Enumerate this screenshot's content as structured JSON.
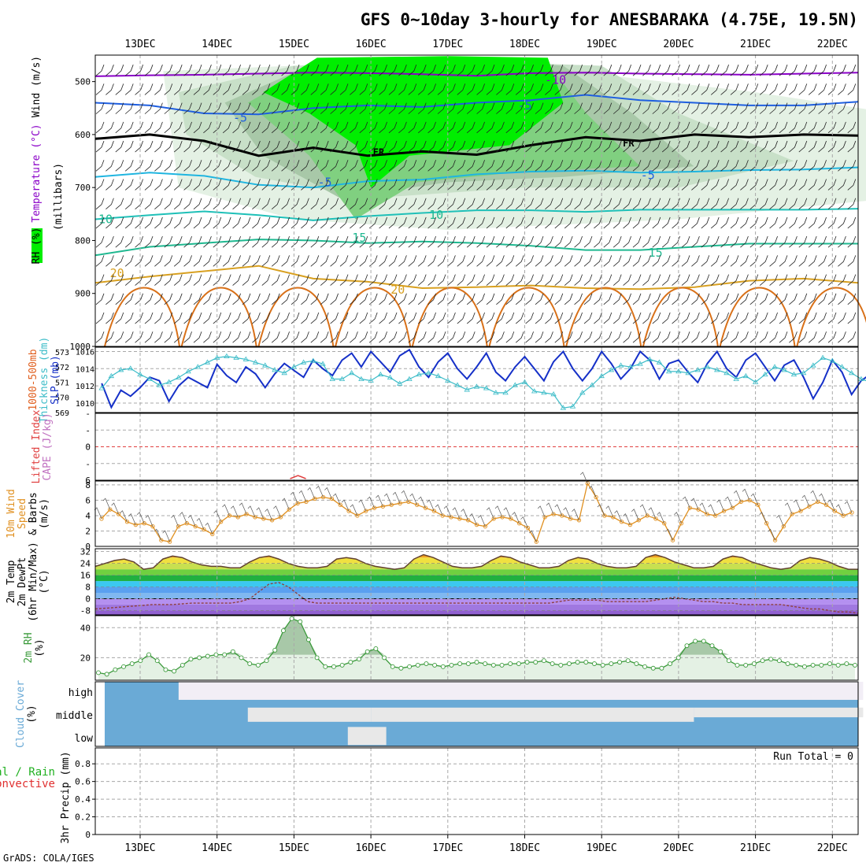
{
  "title": "GFS 0~10day 3-hourly for ANESBARAKA (4.75E, 19.5N)",
  "footer": "GrADS: COLA/IGES",
  "run_total_label": "Run Total = 0",
  "colors": {
    "rh_green": "#00ee00",
    "temperature_purple": "#8a00c8",
    "temperature_blue": "#1f5fe0",
    "freezing": "#000000",
    "temp_cyan": "#1fb5e0",
    "temp_teal": "#1fc0b8",
    "temp_green": "#1fb890",
    "temp_gold": "#d8a020",
    "temp_orange": "#d87018",
    "slp": "#1530c8",
    "thickness": "#3cbcc8",
    "wind": "#e09020",
    "rh2m": "#3a9a3a",
    "cloud": "#6aaad6"
  },
  "chart_data": [
    {
      "type": "heatmap",
      "panel": "upper-air",
      "ylabels": [
        "Wind (m/s)",
        "Temperature (°C)",
        "RH (%)",
        "(millibars)"
      ],
      "x": [
        "13DEC",
        "14DEC",
        "15DEC",
        "16DEC",
        "17DEC",
        "18DEC",
        "19DEC",
        "20DEC",
        "21DEC",
        "22DEC"
      ],
      "ylim": [
        1000,
        450
      ],
      "yticks": [
        500,
        600,
        700,
        800,
        900,
        1000
      ],
      "isotherm_labels": [
        {
          "value": "-10",
          "x": "17DEC+1.4",
          "y": 497
        },
        {
          "value": "-5",
          "x": "17DEC+1.0",
          "y": 545
        },
        {
          "value": "-5",
          "x": "13DEC+1.3",
          "y": 568
        },
        {
          "value": "FR",
          "x": "15DEC+1.1",
          "y": 632
        },
        {
          "value": "FR",
          "x": "19DEC+0.35",
          "y": 615
        },
        {
          "value": "-5",
          "x": "15DEC+0.4",
          "y": 690
        },
        {
          "value": "-5",
          "x": "19DEC+0.6",
          "y": 677
        },
        {
          "value": "10",
          "x": "13DEC-0.45",
          "y": 760
        },
        {
          "value": "10",
          "x": "16DEC+0.85",
          "y": 752
        },
        {
          "value": "15",
          "x": "15DEC+0.85",
          "y": 795
        },
        {
          "value": "15",
          "x": "20DEC-0.3",
          "y": 823
        },
        {
          "value": "20",
          "x": "13DEC-0.3",
          "y": 862
        },
        {
          "value": "20",
          "x": "16DEC+0.35",
          "y": 893
        }
      ],
      "isotherms": [
        {
          "name": "-10",
          "level": [
            490,
            488,
            487,
            485,
            483,
            484,
            486,
            489,
            484,
            483,
            485,
            486,
            487,
            485,
            483
          ]
        },
        {
          "name": "-5",
          "level": [
            540,
            545,
            560,
            562,
            550,
            545,
            548,
            540,
            535,
            525,
            535,
            540,
            545,
            545,
            538
          ]
        },
        {
          "name": "FR",
          "level": [
            608,
            600,
            612,
            640,
            625,
            640,
            632,
            638,
            620,
            605,
            612,
            600,
            605,
            600,
            602
          ]
        },
        {
          "name": "-5",
          "level": [
            680,
            672,
            678,
            695,
            700,
            688,
            685,
            675,
            670,
            668,
            672,
            670,
            667,
            666,
            662
          ]
        },
        {
          "name": "10",
          "level": [
            760,
            752,
            745,
            752,
            762,
            754,
            748,
            743,
            743,
            746,
            742,
            742,
            742,
            742,
            740
          ]
        },
        {
          "name": "15",
          "level": [
            828,
            812,
            805,
            798,
            800,
            805,
            802,
            805,
            810,
            818,
            818,
            812,
            806,
            806,
            806
          ]
        },
        {
          "name": "20",
          "level": [
            880,
            868,
            858,
            848,
            872,
            878,
            890,
            888,
            885,
            890,
            892,
            888,
            876,
            872,
            880
          ]
        }
      ]
    },
    {
      "type": "line",
      "panel": "thickness-slp",
      "ylabels": [
        "1000-500mb",
        "Thickness (dm)",
        "SLP (mb)"
      ],
      "thickness_ticks": [
        569,
        570,
        571,
        572,
        573
      ],
      "slp_ticks": [
        1010,
        1012,
        1014,
        1016
      ],
      "thickness_ylim": [
        569,
        573.3
      ],
      "slp_ylim": [
        1008.9,
        1016.5
      ],
      "x_days": [
        0,
        0.125,
        0.25,
        0.375,
        0.5,
        0.625,
        0.75,
        0.875,
        1.0,
        1.125,
        1.25,
        1.375,
        1.5,
        1.625,
        1.75,
        1.875,
        2.0,
        2.125,
        2.25,
        2.375,
        2.5,
        2.625,
        2.75,
        2.875,
        3.0,
        3.125,
        3.25,
        3.375,
        3.5,
        3.625,
        3.75,
        3.875,
        4.0,
        4.125,
        4.25,
        4.375,
        4.5,
        4.625,
        4.75,
        4.875,
        5.0,
        5.125,
        5.25,
        5.375,
        5.5,
        5.625,
        5.75,
        5.875,
        6.0,
        6.125,
        6.25,
        6.375,
        6.5,
        6.625,
        6.75,
        6.875,
        7.0,
        7.125,
        7.25,
        7.375,
        7.5,
        7.625,
        7.75,
        7.875,
        8.0,
        8.125,
        8.25,
        8.375,
        8.5,
        8.625,
        8.75,
        8.875,
        9.0,
        9.125,
        9.25,
        9.375,
        9.5,
        9.625,
        9.75,
        9.875,
        10.0,
        10.125
      ],
      "series": [
        {
          "name": "SLP",
          "values": [
            1012.3,
            1009.5,
            1011.5,
            1010.8,
            1011.8,
            1013.0,
            1012.6,
            1010.2,
            1012.0,
            1013.0,
            1012.4,
            1011.8,
            1014.5,
            1013.2,
            1012.4,
            1014.2,
            1013.4,
            1011.8,
            1013.4,
            1014.6,
            1013.8,
            1013.0,
            1015.0,
            1014.0,
            1013.2,
            1015.0,
            1015.8,
            1014.2,
            1016.0,
            1014.8,
            1013.6,
            1015.5,
            1016.2,
            1014.2,
            1013.0,
            1014.8,
            1015.8,
            1014.0,
            1012.8,
            1014.2,
            1015.8,
            1013.6,
            1012.6,
            1014.2,
            1015.4,
            1014.0,
            1012.6,
            1014.8,
            1016.0,
            1014.0,
            1012.6,
            1014.0,
            1016.0,
            1014.6,
            1012.8,
            1014.0,
            1016.0,
            1015.0,
            1012.8,
            1014.6,
            1015.0,
            1013.6,
            1012.4,
            1014.6,
            1016.0,
            1014.0,
            1013.0,
            1015.0,
            1015.8,
            1014.2,
            1012.6,
            1014.4,
            1015.0,
            1013.0,
            1010.5,
            1012.4,
            1015.0,
            1013.6,
            1011.0,
            1012.6,
            1013.4,
            1012.6
          ]
        },
        {
          "name": "Thickness",
          "values": [
            570.6,
            571.4,
            571.8,
            571.9,
            571.5,
            571.2,
            570.8,
            571.0,
            571.3,
            571.7,
            572.0,
            572.3,
            572.6,
            572.7,
            572.6,
            572.5,
            572.3,
            572.1,
            571.8,
            571.6,
            572.0,
            572.3,
            572.4,
            572.2,
            571.2,
            571.2,
            571.6,
            571.2,
            571.1,
            571.5,
            571.3,
            570.9,
            571.2,
            571.5,
            571.6,
            571.4,
            571.1,
            570.8,
            570.5,
            570.7,
            570.6,
            570.3,
            570.3,
            570.8,
            571.0,
            570.4,
            570.3,
            570.2,
            569.3,
            569.4,
            570.3,
            570.8,
            571.4,
            571.8,
            572.1,
            572.0,
            572.2,
            572.5,
            572.3,
            571.7,
            571.7,
            571.6,
            571.8,
            572.0,
            571.8,
            571.6,
            571.2,
            571.4,
            571.0,
            571.5,
            572.0,
            571.8,
            571.5,
            571.6,
            572.1,
            572.6,
            572.4,
            572.0,
            571.6,
            571.2,
            571.0,
            570.8
          ]
        }
      ]
    },
    {
      "type": "line",
      "panel": "cape-li",
      "ylabels": [
        "Lifted Index",
        "CAPE (J/kg)"
      ],
      "yticks": [
        -6,
        -3,
        0,
        3,
        6
      ],
      "ytick_labels": [
        "-",
        "-",
        "0",
        "-",
        "6"
      ],
      "ylim": [
        -6,
        6
      ],
      "zero_line": 0
    },
    {
      "type": "line",
      "panel": "wind10m",
      "ylabels": [
        "10m Wind",
        "Speed",
        "& Barbs",
        "(m/s)"
      ],
      "yticks": [
        0,
        2,
        4,
        6,
        8
      ],
      "ylim": [
        0,
        8.5
      ],
      "series": [
        {
          "name": "Speed",
          "values": [
            3.6,
            4.8,
            4.2,
            3.2,
            2.8,
            3.0,
            2.6,
            0.8,
            0.6,
            2.6,
            3.0,
            2.6,
            2.2,
            1.6,
            3.2,
            4.0,
            3.8,
            4.2,
            3.8,
            3.6,
            3.4,
            3.8,
            4.8,
            5.6,
            5.8,
            6.2,
            6.4,
            6.2,
            5.4,
            4.6,
            4.0,
            4.6,
            5.0,
            5.2,
            5.4,
            5.6,
            5.8,
            5.4,
            5.0,
            4.6,
            4.0,
            3.8,
            3.6,
            3.4,
            2.8,
            2.6,
            3.6,
            3.8,
            3.6,
            3.0,
            2.4,
            0.6,
            3.8,
            4.2,
            4.0,
            3.6,
            3.4,
            8.2,
            6.4,
            4.0,
            3.8,
            3.2,
            2.8,
            3.4,
            4.0,
            3.6,
            3.0,
            0.8,
            3.0,
            5.0,
            4.8,
            4.2,
            4.0,
            4.6,
            5.0,
            5.8,
            6.0,
            5.4,
            3.0,
            0.8,
            2.6,
            4.2,
            4.6,
            5.2,
            5.8,
            5.4,
            4.6,
            4.0,
            4.4
          ]
        }
      ]
    },
    {
      "type": "area",
      "panel": "temp2m",
      "ylabels": [
        "2m Temp",
        "2m DewPt",
        "(6hr Min/Max)",
        "(°C)"
      ],
      "yticks": [
        -8,
        0,
        8,
        16,
        24,
        32
      ],
      "ylim": [
        -11,
        34
      ],
      "series": [
        {
          "name": "Temp",
          "values": [
            22,
            24,
            26,
            27,
            25,
            20,
            21,
            27,
            29,
            28,
            25,
            23,
            22,
            22,
            21,
            21,
            25,
            28,
            29,
            27,
            24,
            22,
            21,
            21,
            22,
            27,
            28,
            27,
            24,
            22,
            21,
            20,
            21,
            27,
            30,
            28,
            25,
            22,
            21,
            21,
            22,
            26,
            29,
            28,
            25,
            23,
            21,
            21,
            22,
            26,
            28,
            27,
            24,
            22,
            21,
            21,
            22,
            28,
            30,
            28,
            25,
            23,
            21,
            21,
            22,
            27,
            29,
            28,
            25,
            23,
            21,
            20,
            21,
            26,
            28,
            27,
            25,
            22,
            20,
            20
          ]
        },
        {
          "name": "DewPt",
          "values": [
            -7,
            -6.5,
            -6,
            -5.5,
            -5,
            -4.5,
            -4,
            -4,
            -4,
            -3.5,
            -3,
            -3,
            -3,
            -3,
            -3,
            -2,
            0,
            5,
            10,
            11,
            8,
            3,
            -2,
            -3,
            -3,
            -3,
            -3,
            -3,
            -3,
            -3,
            -3,
            -3,
            -3,
            -3,
            -3,
            -3,
            -3,
            -3,
            -3,
            -3,
            -3,
            -3,
            -3,
            -3,
            -3,
            -3,
            -3,
            -3,
            -2,
            -1,
            -1,
            -1,
            -1,
            -2,
            -2,
            -2,
            -2,
            -2,
            -1,
            0,
            1,
            0,
            -1,
            -2,
            -2,
            -3,
            -3,
            -4,
            -4,
            -4,
            -4,
            -4,
            -5,
            -6,
            -7,
            -7,
            -8,
            -9,
            -9,
            -10
          ]
        }
      ]
    },
    {
      "type": "area",
      "panel": "rh2m",
      "ylabels": [
        "2m RH",
        "(%)"
      ],
      "yticks": [
        20,
        40
      ],
      "ylim": [
        5,
        48
      ],
      "series": [
        {
          "name": "RH",
          "values": [
            10,
            9,
            12,
            14,
            16,
            18,
            22,
            18,
            12,
            11,
            15,
            19,
            20,
            21,
            22,
            22,
            24,
            20,
            16,
            15,
            18,
            25,
            38,
            46,
            44,
            32,
            20,
            14,
            14,
            15,
            17,
            19,
            24,
            26,
            20,
            14,
            13,
            14,
            15,
            16,
            15,
            14,
            15,
            16,
            16,
            17,
            16,
            15,
            15,
            16,
            16,
            17,
            17,
            18,
            16,
            15,
            16,
            17,
            17,
            16,
            15,
            16,
            17,
            18,
            16,
            14,
            13,
            13,
            16,
            20,
            28,
            31,
            31,
            28,
            24,
            18,
            15,
            15,
            16,
            18,
            19,
            18,
            16,
            15,
            14,
            15,
            15,
            16,
            15,
            16,
            15
          ]
        }
      ]
    },
    {
      "type": "heatmap",
      "panel": "cloud-cover",
      "ylabels": [
        "Cloud Cover",
        "(%)"
      ],
      "levels": [
        "high",
        "middle",
        "low"
      ]
    },
    {
      "type": "bar",
      "panel": "precip",
      "ylabels": [
        "Total / Rain",
        "Convective",
        "3hr Precip (mm)"
      ],
      "ylabel_visible": [
        "tal / Rain",
        "Convective",
        "3hr Precip (mm)"
      ],
      "yticks": [
        0,
        0.2,
        0.4,
        0.6,
        0.8
      ],
      "ytick_labels": [
        "0",
        "0.2",
        "0.4",
        "0.6",
        "0.8"
      ],
      "ylim": [
        0,
        0.98
      ],
      "x": [
        "13DEC",
        "14DEC",
        "15DEC",
        "16DEC",
        "17DEC",
        "18DEC",
        "19DEC",
        "20DEC",
        "21DEC",
        "22DEC"
      ]
    }
  ]
}
